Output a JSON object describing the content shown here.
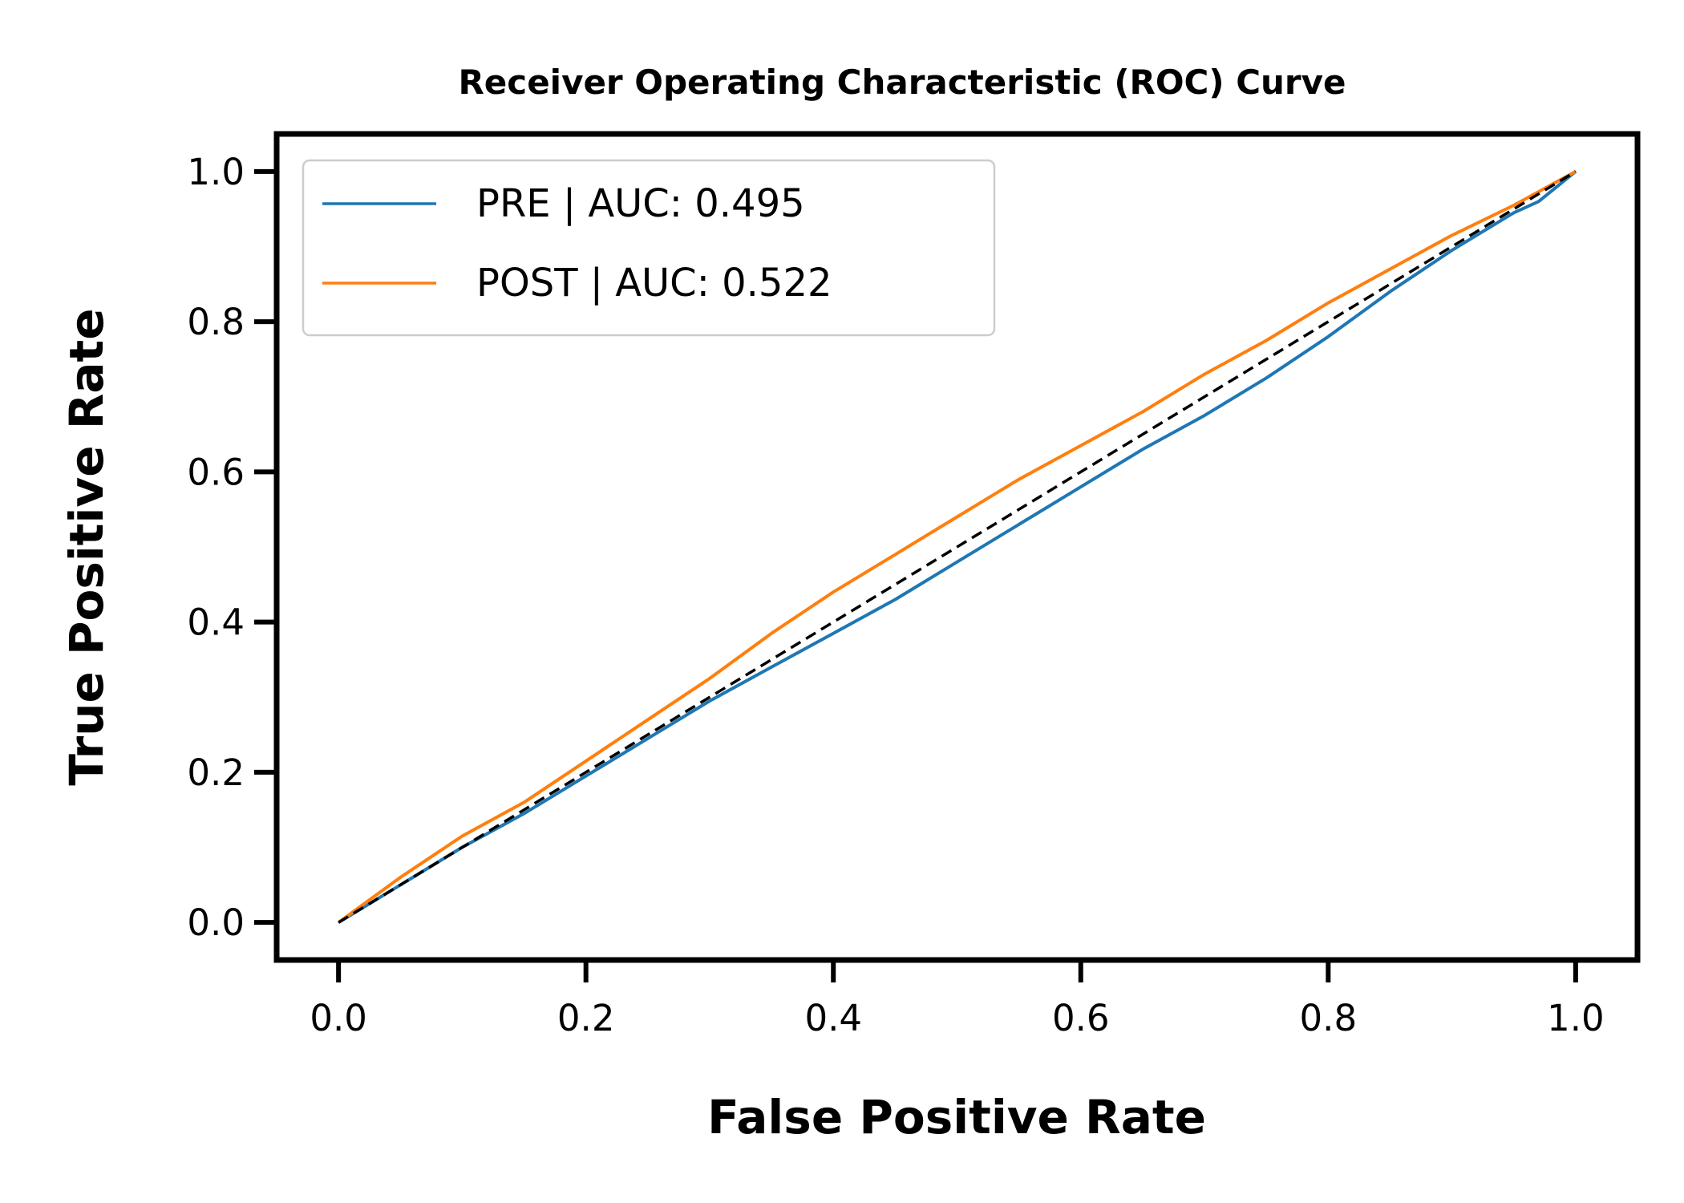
{
  "chart_data": {
    "type": "line",
    "title": "Receiver Operating Characteristic (ROC) Curve",
    "xlabel": "False Positive Rate",
    "ylabel": "True Positive Rate",
    "xlim": [
      -0.05,
      1.05
    ],
    "ylim": [
      -0.05,
      1.05
    ],
    "xticks": [
      0.0,
      0.2,
      0.4,
      0.6,
      0.8,
      1.0
    ],
    "yticks": [
      0.0,
      0.2,
      0.4,
      0.6,
      0.8,
      1.0
    ],
    "xtick_labels": [
      "0.0",
      "0.2",
      "0.4",
      "0.6",
      "0.8",
      "1.0"
    ],
    "ytick_labels": [
      "0.0",
      "0.2",
      "0.4",
      "0.6",
      "0.8",
      "1.0"
    ],
    "grid": false,
    "legend_position": "top-left",
    "series": [
      {
        "name": "PRE | AUC: 0.495",
        "color": "#1f77b4",
        "x": [
          0.0,
          0.05,
          0.1,
          0.15,
          0.2,
          0.25,
          0.3,
          0.35,
          0.4,
          0.45,
          0.5,
          0.55,
          0.6,
          0.65,
          0.7,
          0.75,
          0.8,
          0.85,
          0.9,
          0.95,
          0.97,
          1.0
        ],
        "y": [
          0.0,
          0.05,
          0.1,
          0.145,
          0.195,
          0.245,
          0.295,
          0.34,
          0.385,
          0.43,
          0.48,
          0.53,
          0.58,
          0.63,
          0.675,
          0.725,
          0.78,
          0.84,
          0.895,
          0.945,
          0.96,
          1.0
        ]
      },
      {
        "name": "POST | AUC: 0.522",
        "color": "#ff7f0e",
        "x": [
          0.0,
          0.05,
          0.1,
          0.15,
          0.2,
          0.25,
          0.3,
          0.35,
          0.4,
          0.45,
          0.5,
          0.55,
          0.6,
          0.65,
          0.7,
          0.75,
          0.8,
          0.85,
          0.9,
          0.95,
          1.0
        ],
        "y": [
          0.0,
          0.06,
          0.115,
          0.16,
          0.215,
          0.27,
          0.325,
          0.385,
          0.44,
          0.49,
          0.54,
          0.59,
          0.635,
          0.68,
          0.73,
          0.775,
          0.825,
          0.87,
          0.915,
          0.955,
          1.0
        ]
      },
      {
        "color": "#000000",
        "dashed": true,
        "x": [
          0.0,
          1.0
        ],
        "y": [
          0.0,
          1.0
        ]
      }
    ]
  }
}
